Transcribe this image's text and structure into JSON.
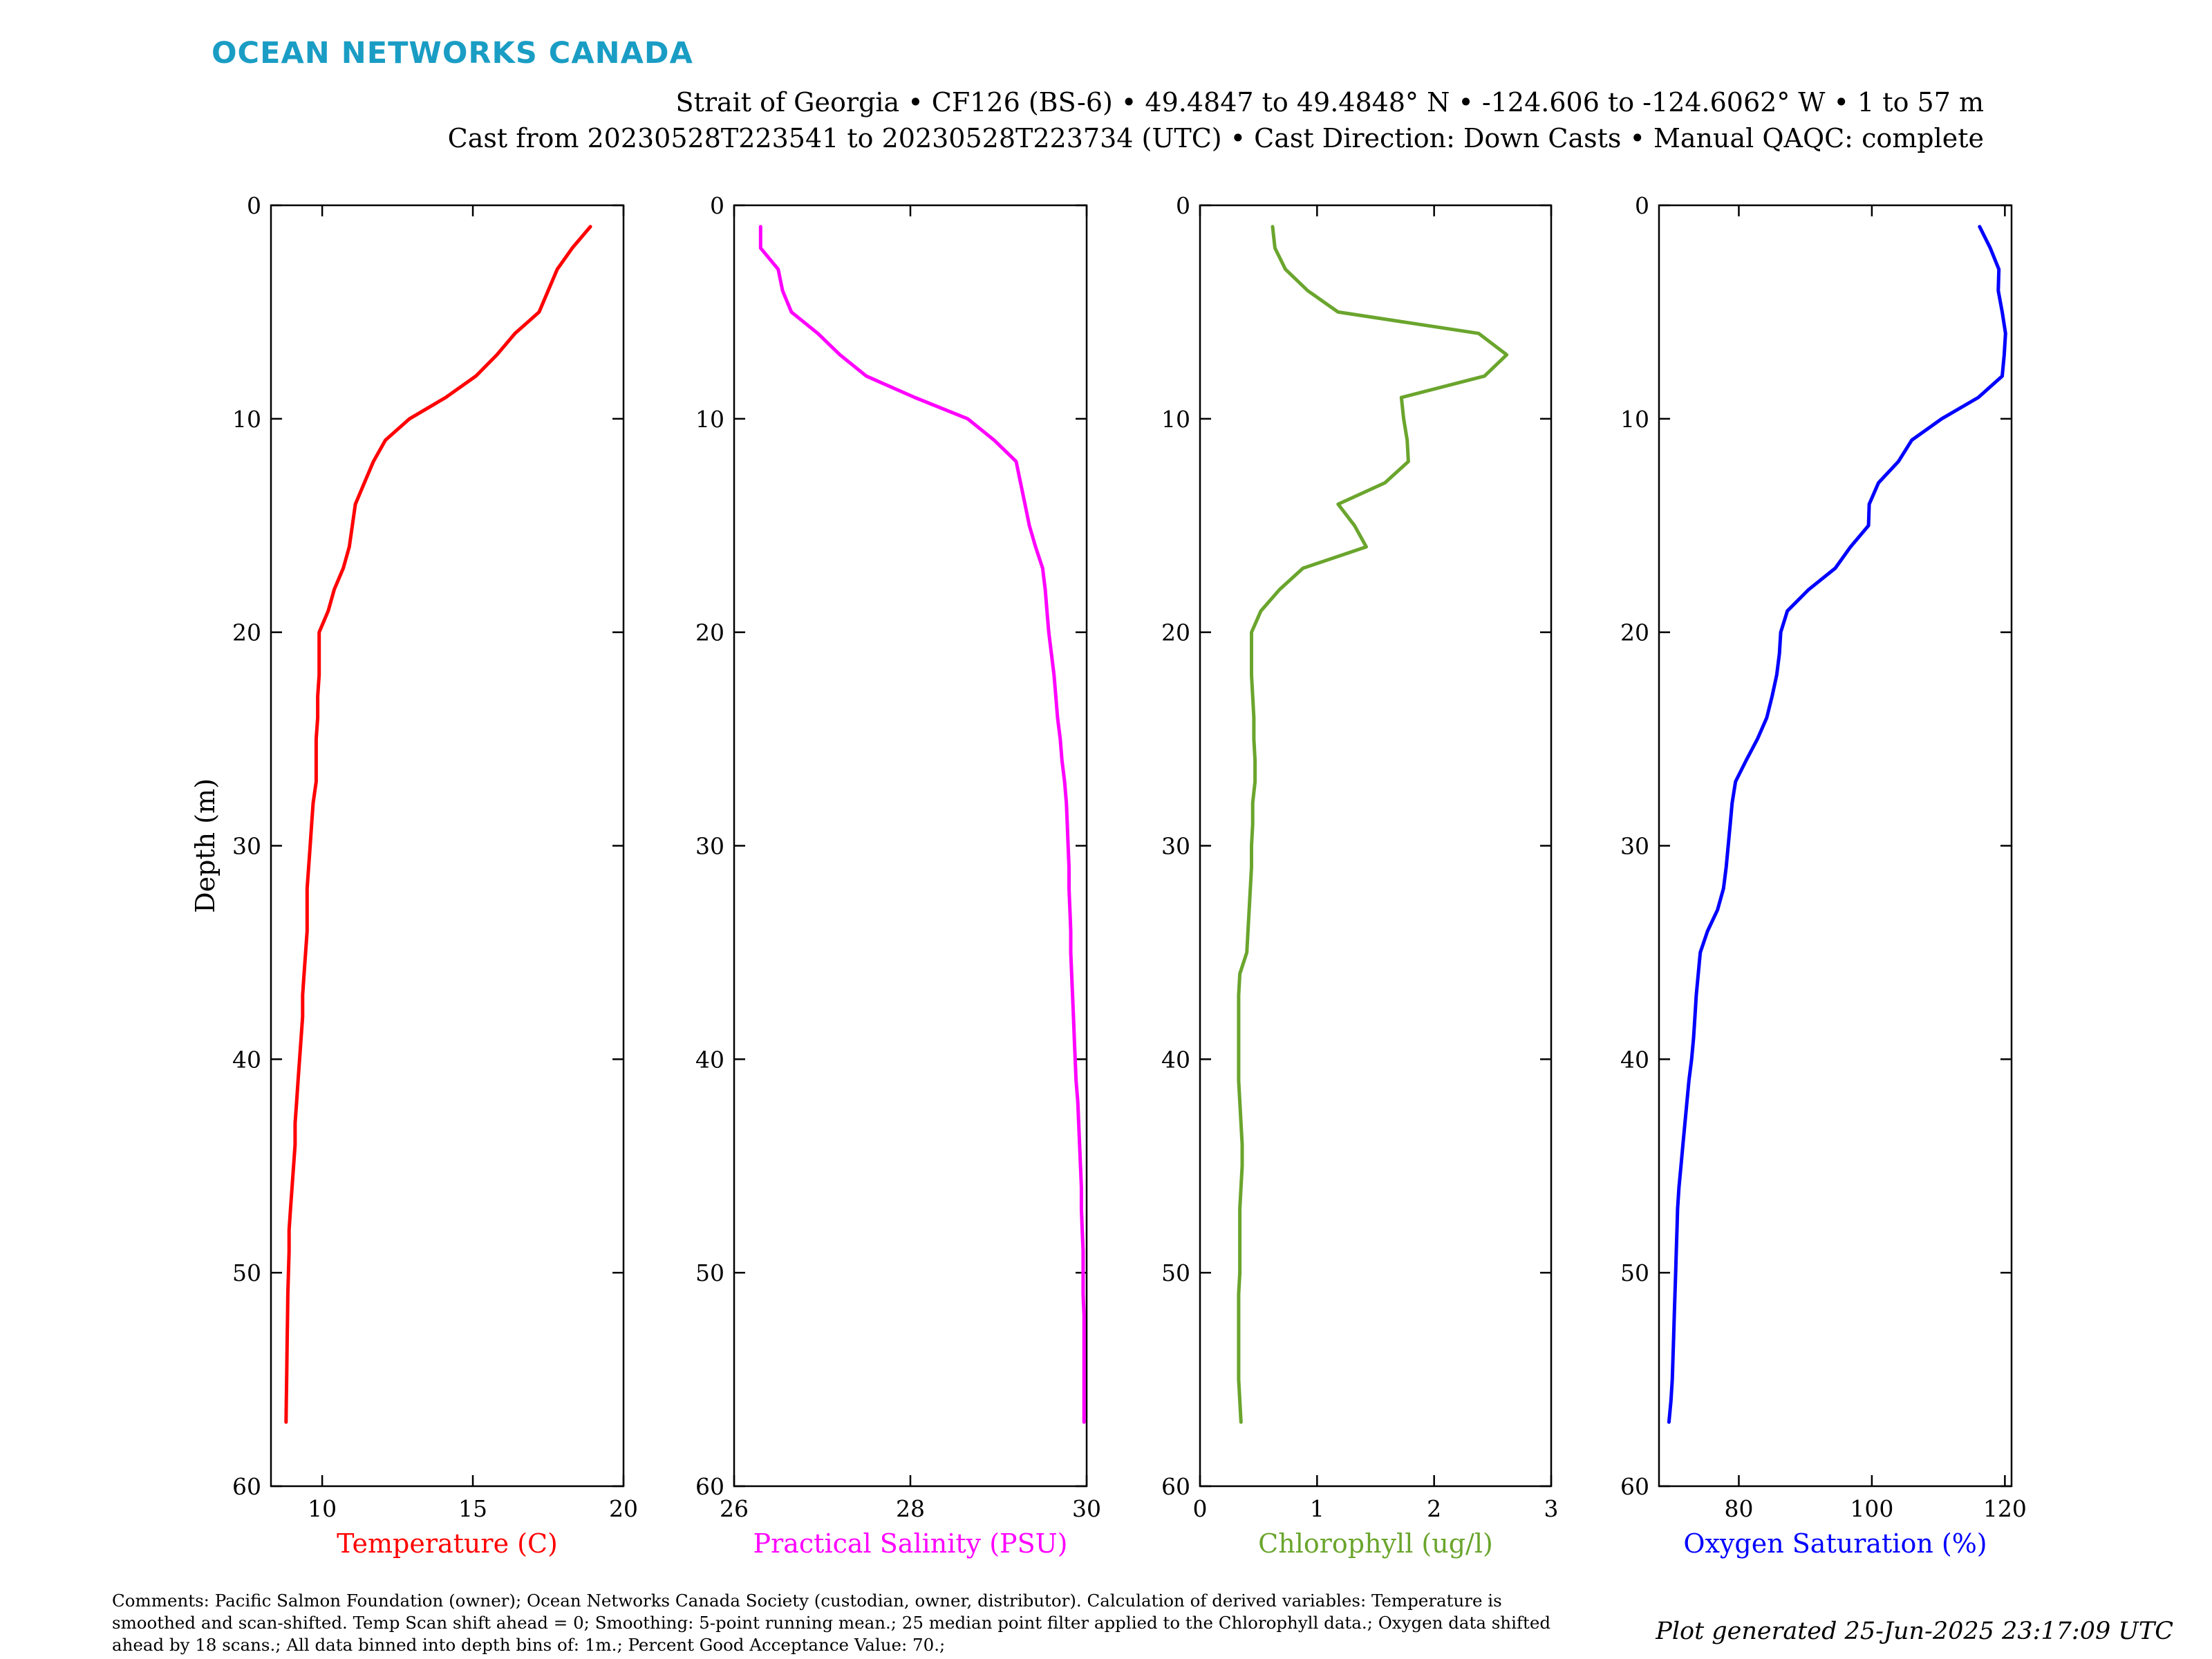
{
  "logo_text": "OCEAN NETWORKS CANADA",
  "header": {
    "line1": "Strait of Georgia • CF126 (BS-6) • 49.4847 to 49.4848° N • -124.606 to -124.6062° W • 1 to 57 m",
    "line2": "Cast from 20230528T223541 to 20230528T223734 (UTC) • Cast Direction: Down Casts • Manual QAQC: complete"
  },
  "comments": "Comments: Pacific Salmon Foundation (owner); Ocean Networks Canada Society (custodian, owner, distributor). Calculation of derived variables: Temperature is smoothed and scan-shifted. Temp Scan shift ahead = 0; Smoothing: 5-point running mean.; 25 median point filter applied to the Chlorophyll data.; Oxygen data shifted ahead by 18 scans.; All data binned into depth bins of: 1m.; Percent Good Acceptance Value: 70.;",
  "generated": "Plot generated 25-Jun-2025 23:17:09 UTC",
  "chart_data": [
    {
      "type": "line",
      "xlabel": "Temperature (C)",
      "ylabel": "Depth (m)",
      "color": "#ff0000",
      "xlim": [
        8.3,
        20
      ],
      "xticks": [
        10,
        15,
        20
      ],
      "ylim": [
        0,
        60
      ],
      "yticks": [
        0,
        10,
        20,
        30,
        40,
        50,
        60
      ],
      "y_reversed": true,
      "depth": [
        1,
        2,
        3,
        4,
        5,
        6,
        7,
        8,
        9,
        10,
        11,
        12,
        13,
        14,
        15,
        16,
        17,
        18,
        19,
        20,
        21,
        22,
        23,
        24,
        25,
        26,
        27,
        28,
        29,
        30,
        31,
        32,
        33,
        34,
        35,
        36,
        37,
        38,
        39,
        40,
        41,
        42,
        43,
        44,
        45,
        46,
        47,
        48,
        49,
        50,
        51,
        52,
        53,
        54,
        55,
        56,
        57
      ],
      "values": [
        18.9,
        18.3,
        17.8,
        17.5,
        17.2,
        16.4,
        15.8,
        15.1,
        14.1,
        12.9,
        12.1,
        11.7,
        11.4,
        11.1,
        11.0,
        10.9,
        10.7,
        10.4,
        10.2,
        9.9,
        9.9,
        9.9,
        9.85,
        9.85,
        9.8,
        9.8,
        9.8,
        9.7,
        9.65,
        9.6,
        9.55,
        9.5,
        9.5,
        9.5,
        9.45,
        9.4,
        9.35,
        9.35,
        9.3,
        9.25,
        9.2,
        9.15,
        9.1,
        9.1,
        9.05,
        9.0,
        8.95,
        8.9,
        8.9,
        8.88,
        8.86,
        8.85,
        8.84,
        8.83,
        8.82,
        8.81,
        8.8
      ]
    },
    {
      "type": "line",
      "xlabel": "Practical Salinity (PSU)",
      "ylabel": "",
      "color": "#ff00ff",
      "xlim": [
        26,
        30
      ],
      "xticks": [
        26,
        28,
        30
      ],
      "ylim": [
        0,
        60
      ],
      "yticks": [
        0,
        10,
        20,
        30,
        40,
        50,
        60
      ],
      "y_reversed": true,
      "depth": [
        1,
        2,
        3,
        4,
        5,
        6,
        7,
        8,
        9,
        10,
        11,
        12,
        13,
        14,
        15,
        16,
        17,
        18,
        19,
        20,
        21,
        22,
        23,
        24,
        25,
        26,
        27,
        28,
        29,
        30,
        31,
        32,
        33,
        34,
        35,
        36,
        37,
        38,
        39,
        40,
        41,
        42,
        43,
        44,
        45,
        46,
        47,
        48,
        49,
        50,
        51,
        52,
        53,
        54,
        55,
        56,
        57
      ],
      "values": [
        26.3,
        26.3,
        26.5,
        26.55,
        26.65,
        26.95,
        27.2,
        27.5,
        28.05,
        28.65,
        28.95,
        29.2,
        29.25,
        29.3,
        29.35,
        29.42,
        29.5,
        29.53,
        29.55,
        29.57,
        29.6,
        29.63,
        29.65,
        29.67,
        29.7,
        29.72,
        29.75,
        29.77,
        29.78,
        29.79,
        29.8,
        29.8,
        29.81,
        29.82,
        29.82,
        29.83,
        29.84,
        29.85,
        29.86,
        29.87,
        29.88,
        29.9,
        29.91,
        29.92,
        29.93,
        29.94,
        29.94,
        29.95,
        29.96,
        29.96,
        29.96,
        29.97,
        29.97,
        29.97,
        29.97,
        29.97,
        29.97
      ]
    },
    {
      "type": "line",
      "xlabel": "Chlorophyll (ug/l)",
      "ylabel": "",
      "color": "#6aa52d",
      "xlim": [
        0,
        3
      ],
      "xticks": [
        0,
        1,
        2,
        3
      ],
      "ylim": [
        0,
        60
      ],
      "yticks": [
        0,
        10,
        20,
        30,
        40,
        50,
        60
      ],
      "y_reversed": true,
      "depth": [
        1,
        2,
        3,
        4,
        5,
        6,
        7,
        8,
        9,
        10,
        11,
        12,
        13,
        14,
        15,
        16,
        17,
        18,
        19,
        20,
        21,
        22,
        23,
        24,
        25,
        26,
        27,
        28,
        29,
        30,
        31,
        32,
        33,
        34,
        35,
        36,
        37,
        38,
        39,
        40,
        41,
        42,
        43,
        44,
        45,
        46,
        47,
        48,
        49,
        50,
        51,
        52,
        53,
        54,
        55,
        56,
        57
      ],
      "values": [
        0.62,
        0.64,
        0.73,
        0.92,
        1.18,
        2.38,
        2.62,
        2.43,
        1.72,
        1.74,
        1.77,
        1.78,
        1.58,
        1.18,
        1.32,
        1.42,
        0.88,
        0.68,
        0.52,
        0.44,
        0.44,
        0.44,
        0.45,
        0.46,
        0.46,
        0.47,
        0.47,
        0.45,
        0.45,
        0.44,
        0.44,
        0.43,
        0.42,
        0.41,
        0.4,
        0.34,
        0.33,
        0.33,
        0.33,
        0.33,
        0.33,
        0.34,
        0.35,
        0.36,
        0.36,
        0.35,
        0.34,
        0.34,
        0.34,
        0.34,
        0.33,
        0.33,
        0.33,
        0.33,
        0.33,
        0.34,
        0.35
      ]
    },
    {
      "type": "line",
      "xlabel": "Oxygen Saturation (%)",
      "ylabel": "",
      "color": "#0000ff",
      "xlim": [
        68,
        121
      ],
      "xticks": [
        80,
        100,
        120
      ],
      "ylim": [
        0,
        60
      ],
      "yticks": [
        0,
        10,
        20,
        30,
        40,
        50,
        60
      ],
      "y_reversed": true,
      "depth": [
        1,
        2,
        3,
        4,
        5,
        6,
        7,
        8,
        9,
        10,
        11,
        12,
        13,
        14,
        15,
        16,
        17,
        18,
        19,
        20,
        21,
        22,
        23,
        24,
        25,
        26,
        27,
        28,
        29,
        30,
        31,
        32,
        33,
        34,
        35,
        36,
        37,
        38,
        39,
        40,
        41,
        42,
        43,
        44,
        45,
        46,
        47,
        48,
        49,
        50,
        51,
        52,
        53,
        54,
        55,
        56,
        57
      ],
      "values": [
        116.2,
        117.8,
        119.1,
        119.0,
        119.6,
        120.1,
        119.9,
        119.6,
        116.0,
        110.5,
        106.0,
        104.0,
        101.0,
        99.6,
        99.5,
        96.8,
        94.5,
        90.5,
        87.3,
        86.3,
        86.1,
        85.7,
        85.0,
        84.2,
        82.8,
        81.1,
        79.5,
        79.0,
        78.7,
        78.4,
        78.1,
        77.7,
        76.8,
        75.3,
        74.2,
        73.9,
        73.6,
        73.4,
        73.2,
        72.9,
        72.5,
        72.2,
        71.9,
        71.6,
        71.3,
        71.0,
        70.8,
        70.7,
        70.6,
        70.5,
        70.4,
        70.3,
        70.2,
        70.1,
        70.0,
        69.8,
        69.5
      ]
    }
  ]
}
